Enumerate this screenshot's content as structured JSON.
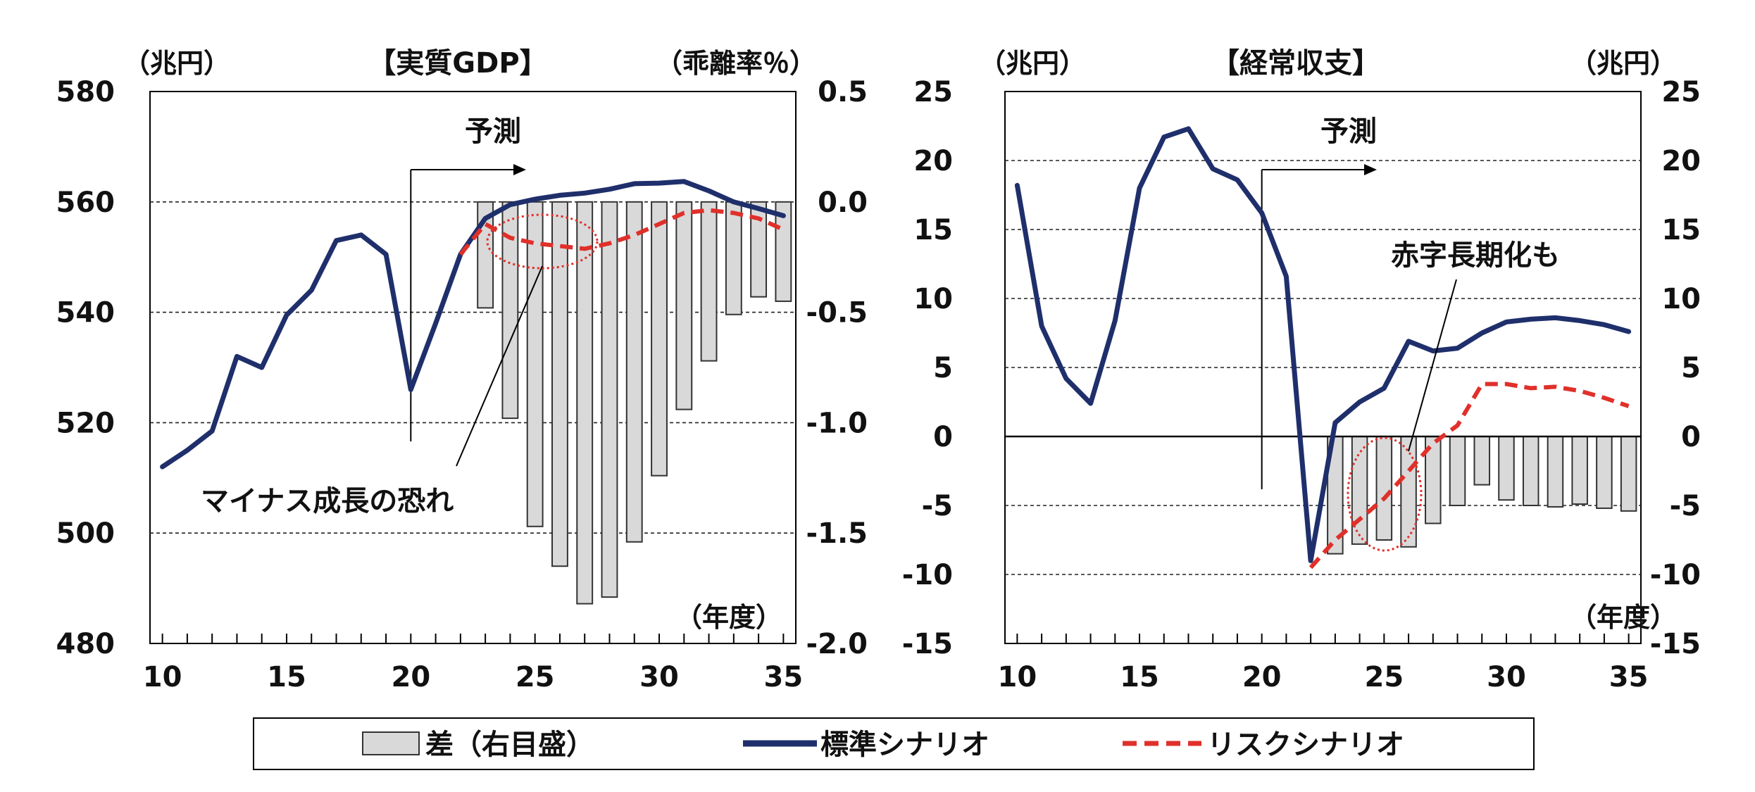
{
  "colors": {
    "standard": "#1f2f6b",
    "risk": "#e0302a",
    "bar_fill": "#d9d9d9",
    "bar_stroke": "#333333"
  },
  "legend": {
    "bar_label": "差（右目盛）",
    "standard_label": "標準シナリオ",
    "risk_label": "リスクシナリオ"
  },
  "chart_data": [
    {
      "type": "line",
      "title": "【実質GDP】",
      "ylabel_left": "（兆円）",
      "ylabel_right": "（乖離率％）",
      "xlabel": "（年度）",
      "forecast_label": "予測",
      "annotation": "マイナス成長の恐れ",
      "forecast_start_x": 20,
      "xlim": [
        9.5,
        35.5
      ],
      "ylim_left": [
        480,
        580
      ],
      "ylim_right": [
        -2.0,
        0.5
      ],
      "x_ticks": [
        10,
        15,
        20,
        25,
        30,
        35
      ],
      "y_ticks_left": [
        480,
        500,
        520,
        540,
        560,
        580
      ],
      "y_ticks_right": [
        -2.0,
        -1.5,
        -1.0,
        -0.5,
        0.0,
        0.5
      ],
      "y_tick_labels_right": [
        "-2.0",
        "-1.5",
        "-1.0",
        "-0.5",
        "0.0",
        "0.5"
      ],
      "grid_left": [
        500,
        520,
        540,
        560
      ],
      "standard": {
        "x": [
          10,
          11,
          12,
          13,
          14,
          15,
          16,
          17,
          18,
          19,
          20,
          21,
          22,
          23,
          24,
          25,
          26,
          27,
          28,
          29,
          30,
          31,
          32,
          33,
          34,
          35
        ],
        "y": [
          512,
          515,
          518.5,
          532,
          530,
          539.5,
          544,
          553,
          554,
          550.5,
          526,
          538,
          550.5,
          557,
          559.5,
          560.5,
          561.2,
          561.6,
          562.3,
          563.3,
          563.4,
          563.7,
          562,
          560,
          558.8,
          557.5
        ]
      },
      "risk": {
        "x": [
          22,
          23,
          24,
          25,
          26,
          27,
          28,
          29,
          30,
          31,
          32,
          33,
          34,
          35
        ],
        "y": [
          550.5,
          556,
          553.5,
          552.5,
          552,
          551.5,
          552.5,
          554,
          556,
          558,
          558.5,
          558,
          557,
          555
        ]
      },
      "bars": {
        "x": [
          23,
          24,
          25,
          26,
          27,
          28,
          29,
          30,
          31,
          32,
          33,
          34,
          35
        ],
        "values": [
          -0.48,
          -0.98,
          -1.47,
          -1.65,
          -1.82,
          -1.79,
          -1.54,
          -1.24,
          -0.94,
          -0.72,
          -0.51,
          -0.43,
          -0.45
        ]
      }
    },
    {
      "type": "line",
      "title": "【経常収支】",
      "ylabel_left": "（兆円）",
      "ylabel_right": "（兆円）",
      "xlabel": "（年度）",
      "forecast_label": "予測",
      "annotation": "赤字長期化も",
      "forecast_start_x": 20,
      "xlim": [
        9.5,
        35.5
      ],
      "ylim_left": [
        -15,
        25
      ],
      "ylim_right": [
        -15,
        25
      ],
      "x_ticks": [
        10,
        15,
        20,
        25,
        30,
        35
      ],
      "y_ticks_left": [
        -15,
        -10,
        -5,
        0,
        5,
        10,
        15,
        20,
        25
      ],
      "y_ticks_right": [
        -15,
        -10,
        -5,
        0,
        5,
        10,
        15,
        20,
        25
      ],
      "y_tick_labels_right": [
        "-15",
        "-10",
        "-5",
        "0",
        "5",
        "10",
        "15",
        "20",
        "25"
      ],
      "grid_left": [
        -10,
        -5,
        5,
        10,
        15,
        20
      ],
      "standard": {
        "x": [
          10,
          11,
          12,
          13,
          14,
          15,
          16,
          17,
          18,
          19,
          20,
          21,
          22,
          23,
          24,
          25,
          26,
          27,
          28,
          29,
          30,
          31,
          32,
          33,
          34,
          35
        ],
        "y": [
          18.2,
          8,
          4.2,
          2.4,
          8.4,
          18,
          21.7,
          22.3,
          19.4,
          18.6,
          16.2,
          11.6,
          -9,
          1,
          2.5,
          3.5,
          6.9,
          6.2,
          6.4,
          7.5,
          8.3,
          8.5,
          8.6,
          8.4,
          8.1,
          7.6
        ]
      },
      "risk": {
        "x": [
          22,
          23,
          24,
          25,
          26,
          27,
          28,
          29,
          30,
          31,
          32,
          33,
          34,
          35
        ],
        "y": [
          -9.5,
          -7.5,
          -6,
          -4.5,
          -2.5,
          -0.5,
          0.8,
          3.8,
          3.8,
          3.5,
          3.6,
          3.3,
          2.8,
          2.2
        ]
      },
      "bars": {
        "x": [
          23,
          24,
          25,
          26,
          27,
          28,
          29,
          30,
          31,
          32,
          33,
          34,
          35
        ],
        "values": [
          -8.5,
          -7.8,
          -7.5,
          -8,
          -6.3,
          -5,
          -3.5,
          -4.6,
          -5,
          -5.1,
          -4.9,
          -5.2,
          -5.4
        ]
      }
    }
  ]
}
